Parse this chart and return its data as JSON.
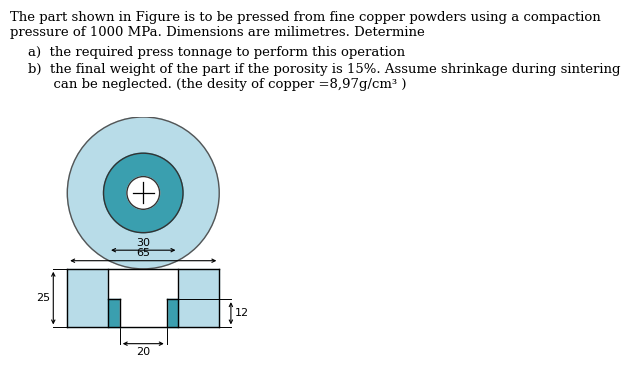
{
  "bg_color": "#ffffff",
  "text_color": "#000000",
  "light_blue": "#b8dce8",
  "dark_teal": "#3a9faf",
  "line1": "The part shown in Figure is to be pressed from fine copper powders using a compaction",
  "line2": "pressure of 1000 MPa. Dimensions are milimetres. Determine",
  "item_a": "a)  the required press tonnage to perform this operation",
  "item_b1": "b)  the final weight of the part if the porosity is 15%. Assume shrinkage during sintering",
  "item_b2": "      can be neglected. (the desity of copper =8,97g/cm³ )",
  "dim_65": "65",
  "dim_30": "30",
  "dim_25": "25",
  "dim_12": "12",
  "dim_20": "20"
}
